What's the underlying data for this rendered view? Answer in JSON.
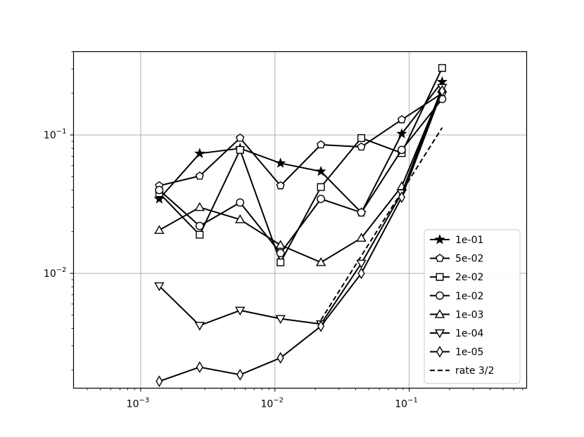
{
  "chart_data": {
    "type": "line",
    "title": "",
    "xlabel": "",
    "ylabel": "",
    "xscale": "log",
    "yscale": "log",
    "xlim": [
      0.000316,
      0.75
    ],
    "ylim": [
      0.00148,
      0.4
    ],
    "grid": true,
    "legend_placement": "lower-right",
    "x_ticks": [
      {
        "value": 0.001,
        "base": "10",
        "exp": "−3"
      },
      {
        "value": 0.01,
        "base": "10",
        "exp": "−2"
      },
      {
        "value": 0.1,
        "base": "10",
        "exp": "−1"
      }
    ],
    "y_ticks": [
      {
        "value": 0.01,
        "base": "10",
        "exp": "−2"
      },
      {
        "value": 0.1,
        "base": "10",
        "exp": "−1"
      }
    ],
    "x": [
      0.001375,
      0.00275,
      0.0055,
      0.011,
      0.022,
      0.044,
      0.088,
      0.176
    ],
    "series": [
      {
        "name": "1e-01",
        "marker": "star",
        "values": [
          0.0345,
          0.0735,
          0.08,
          0.0625,
          0.0545,
          0.0275,
          0.102,
          0.242
        ]
      },
      {
        "name": "5e-02",
        "marker": "pentagon",
        "values": [
          0.043,
          0.0505,
          0.095,
          0.043,
          0.085,
          0.082,
          0.129,
          0.2
        ]
      },
      {
        "name": "2e-02",
        "marker": "square",
        "values": [
          0.038,
          0.019,
          0.078,
          0.012,
          0.042,
          0.095,
          0.074,
          0.305
        ]
      },
      {
        "name": "1e-02",
        "marker": "circle",
        "values": [
          0.04,
          0.022,
          0.0325,
          0.014,
          0.0345,
          0.0275,
          0.078,
          0.182
        ]
      },
      {
        "name": "1e-03",
        "marker": "triangle-up",
        "values": [
          0.0205,
          0.03,
          0.0245,
          0.016,
          0.012,
          0.018,
          0.0425,
          0.215
        ]
      },
      {
        "name": "1e-04",
        "marker": "triangle-down",
        "values": [
          0.0081,
          0.0042,
          0.0054,
          0.0047,
          0.0043,
          0.0118,
          0.038,
          0.22
        ]
      },
      {
        "name": "1e-05",
        "marker": "diamond",
        "values": [
          0.00166,
          0.0021,
          0.00185,
          0.00245,
          0.00415,
          0.01,
          0.0355,
          0.208
        ]
      }
    ],
    "reference_line": {
      "name": "rate 3/2",
      "style": "dashed",
      "x": [
        0.022,
        0.176
      ],
      "y": [
        0.0046,
        0.113
      ]
    }
  }
}
